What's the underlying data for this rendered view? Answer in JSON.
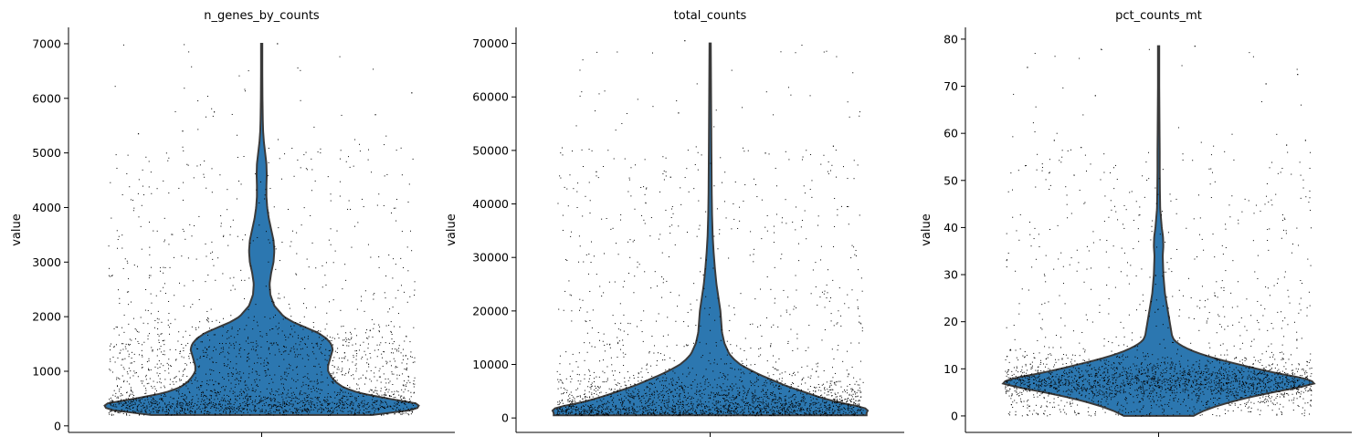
{
  "figure": {
    "background": "#ffffff"
  },
  "style": {
    "violin_fill": "#2c77b0",
    "violin_edge": "#3a3a3a",
    "point_color": "#000000",
    "axis_color": "#000000"
  },
  "chart_data": [
    {
      "type": "violin",
      "title": "n_genes_by_counts",
      "ylabel": "value",
      "ylim": [
        -120,
        7300
      ],
      "yticks": [
        0,
        1000,
        2000,
        3000,
        4000,
        5000,
        6000,
        7000
      ],
      "ytick_labels": [
        "0",
        "1000",
        "2000",
        "3000",
        "4000",
        "5000",
        "6000",
        "7000"
      ],
      "grid": false,
      "density_profile": {
        "y": [
          200,
          300,
          400,
          500,
          600,
          700,
          800,
          900,
          1000,
          1100,
          1200,
          1300,
          1400,
          1500,
          1600,
          1700,
          1800,
          1900,
          2000,
          2200,
          2400,
          2600,
          2800,
          3000,
          3200,
          3400,
          3600,
          3800,
          4000,
          4200,
          4400,
          4600,
          4800,
          5000,
          5200,
          5400,
          5600,
          5800,
          6000,
          6500,
          7000
        ],
        "width": [
          0.7,
          0.98,
          1.0,
          0.8,
          0.62,
          0.52,
          0.47,
          0.44,
          0.42,
          0.42,
          0.43,
          0.44,
          0.45,
          0.44,
          0.41,
          0.36,
          0.28,
          0.2,
          0.14,
          0.08,
          0.055,
          0.05,
          0.06,
          0.075,
          0.08,
          0.075,
          0.06,
          0.045,
          0.035,
          0.03,
          0.03,
          0.032,
          0.03,
          0.022,
          0.014,
          0.009,
          0.007,
          0.006,
          0.005,
          0.004,
          0.004
        ]
      },
      "points": {
        "count": 2600,
        "min": 200,
        "max": 7000,
        "max_at_center": 7000
      },
      "outliers": [
        {
          "x": -0.5,
          "y": 5400
        },
        {
          "x": -0.3,
          "y": 5750
        },
        {
          "x": 0.95,
          "y": 6100
        },
        {
          "x": 0.1,
          "y": 7000
        },
        {
          "x": -0.78,
          "y": 5350
        },
        {
          "x": 0.72,
          "y": 5700
        }
      ]
    },
    {
      "type": "violin",
      "title": "total_counts",
      "ylabel": "value",
      "ylim": [
        -2700,
        73000
      ],
      "yticks": [
        0,
        10000,
        20000,
        30000,
        40000,
        50000,
        60000,
        70000
      ],
      "ytick_labels": [
        "0",
        "10000",
        "20000",
        "30000",
        "40000",
        "50000",
        "60000",
        "70000"
      ],
      "grid": false,
      "density_profile": {
        "y": [
          500,
          1000,
          1500,
          2000,
          2500,
          3000,
          4000,
          5000,
          6000,
          7000,
          8000,
          9000,
          10000,
          11000,
          12000,
          14000,
          16000,
          18000,
          20000,
          22000,
          25000,
          28000,
          31000,
          34000,
          38000,
          42000,
          46000,
          50000,
          55000,
          60000,
          65000,
          70000
        ],
        "width": [
          0.99,
          0.99,
          1.0,
          0.97,
          0.88,
          0.8,
          0.68,
          0.58,
          0.48,
          0.4,
          0.32,
          0.25,
          0.19,
          0.15,
          0.12,
          0.09,
          0.075,
          0.07,
          0.065,
          0.055,
          0.04,
          0.03,
          0.022,
          0.016,
          0.012,
          0.01,
          0.009,
          0.008,
          0.007,
          0.006,
          0.005,
          0.004
        ]
      },
      "points": {
        "count": 2600,
        "min": 500,
        "max": 70500,
        "max_at_center": 70000
      },
      "outliers": [
        {
          "x": -0.16,
          "y": 70500
        },
        {
          "x": -0.2,
          "y": 57000
        },
        {
          "x": -0.72,
          "y": 46000
        },
        {
          "x": 0.35,
          "y": 49500
        },
        {
          "x": 0.78,
          "y": 50800
        },
        {
          "x": -0.25,
          "y": 45000
        }
      ]
    },
    {
      "type": "violin",
      "title": "pct_counts_mt",
      "ylabel": "value",
      "ylim": [
        -3.5,
        82.5
      ],
      "yticks": [
        0,
        10,
        20,
        30,
        40,
        50,
        60,
        70,
        80
      ],
      "ytick_labels": [
        "0",
        "10",
        "20",
        "30",
        "40",
        "50",
        "60",
        "70",
        "80"
      ],
      "grid": false,
      "density_profile": {
        "y": [
          0,
          1,
          2,
          3,
          4,
          5,
          6,
          7,
          8,
          9,
          10,
          11,
          12,
          13,
          14,
          15,
          16,
          17,
          18,
          19,
          20,
          22,
          24,
          26,
          28,
          30,
          32,
          34,
          36,
          38,
          40,
          44,
          48,
          52,
          56,
          60,
          65,
          70,
          75,
          78.5
        ],
        "width": [
          0.22,
          0.28,
          0.36,
          0.46,
          0.58,
          0.72,
          0.88,
          1.0,
          0.92,
          0.76,
          0.62,
          0.5,
          0.38,
          0.28,
          0.2,
          0.14,
          0.1,
          0.085,
          0.08,
          0.075,
          0.07,
          0.06,
          0.05,
          0.04,
          0.035,
          0.03,
          0.028,
          0.026,
          0.03,
          0.028,
          0.02,
          0.01,
          0.008,
          0.007,
          0.007,
          0.006,
          0.005,
          0.004,
          0.004,
          0.004
        ]
      },
      "points": {
        "count": 2600,
        "min": 0,
        "max": 78.5,
        "max_at_center": 78.5
      },
      "outliers": [
        {
          "x": -0.83,
          "y": 74
        },
        {
          "x": 0.88,
          "y": 72.5
        },
        {
          "x": 0.68,
          "y": 70.5
        },
        {
          "x": -0.4,
          "y": 68
        },
        {
          "x": -0.66,
          "y": 58.5
        },
        {
          "x": 0.93,
          "y": 58.5
        },
        {
          "x": 0.81,
          "y": 57.5
        },
        {
          "x": -0.49,
          "y": 57
        },
        {
          "x": 0.23,
          "y": 78.5
        }
      ]
    }
  ]
}
